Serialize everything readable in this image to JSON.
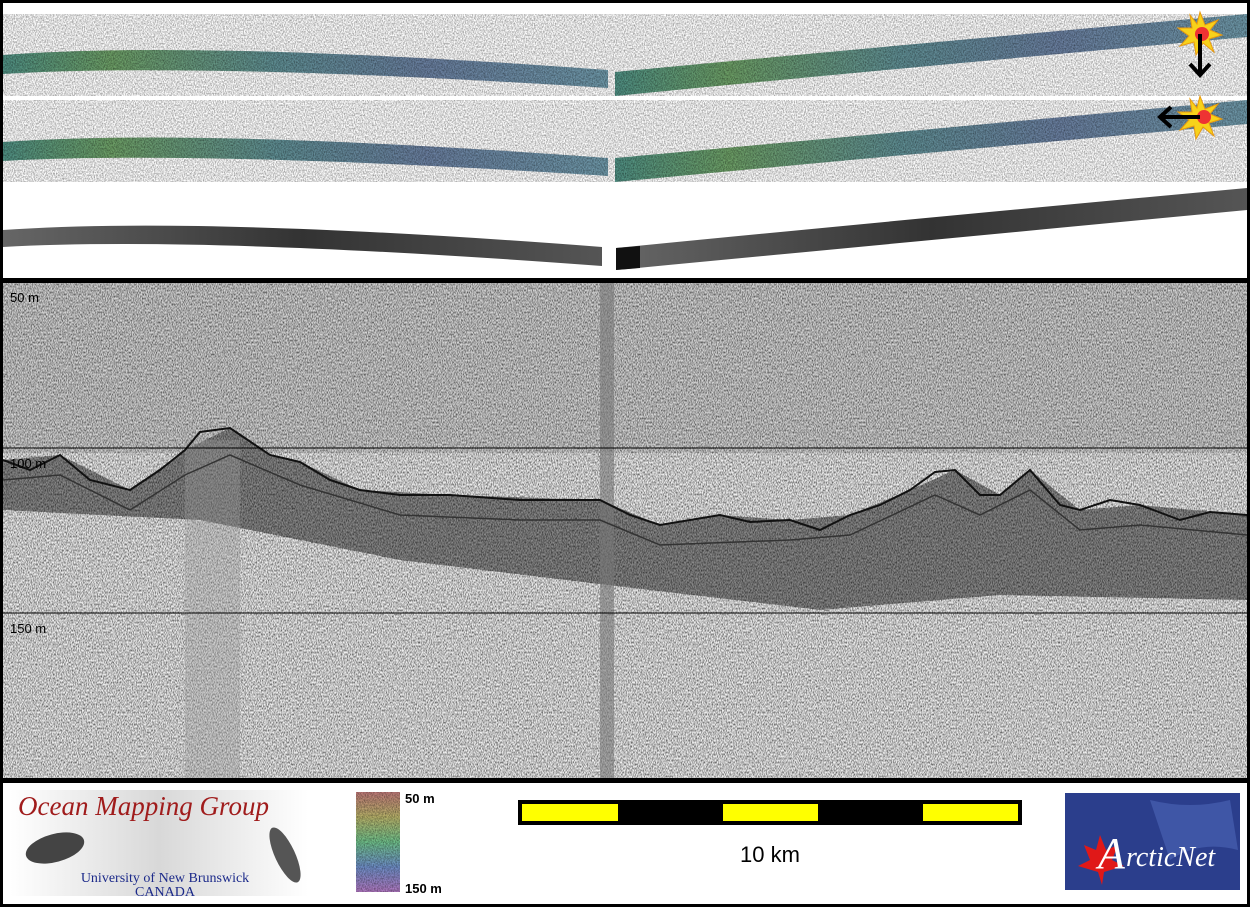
{
  "profile": {
    "depth_labels": [
      "50 m",
      "100 m",
      "150 m"
    ]
  },
  "footer": {
    "logo": {
      "title": "Ocean Mapping Group",
      "university": "University of New Brunswick",
      "country": "CANADA"
    },
    "colorbar": {
      "top_label": "50 m",
      "bottom_label": "150 m"
    },
    "scale_bar": {
      "label": "10 km"
    },
    "partner_logo": {
      "initial": "A",
      "rest": "rcticNet"
    }
  }
}
